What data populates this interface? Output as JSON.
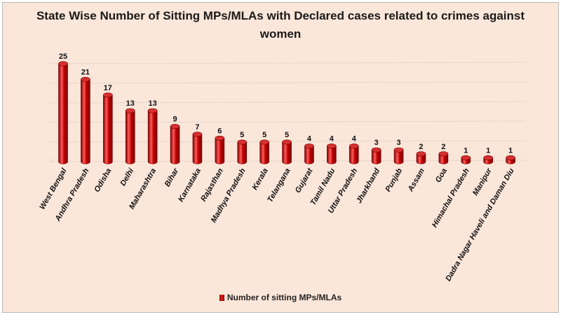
{
  "chart_data": {
    "type": "bar",
    "title_line1": "State Wise Number of Sitting MPs/MLAs  with Declared cases related to crimes against",
    "title_line2": "women",
    "categories": [
      "West Bengal",
      "Andhra Pradesh",
      "Odisha",
      "Delhi",
      "Maharashtra",
      "Bihar",
      "Karnataka",
      "Rajasthan",
      "Madhya Pradesh",
      "Kerala",
      "Telangana",
      "Gujarat",
      "Tamil Nadu",
      "Uttar Pradesh",
      "Jharkhand",
      "Punjab",
      "Assam",
      "Goa",
      "Himachal Pradesh",
      "Manipur",
      "Dadra Nagar Haveli and Daman Diu"
    ],
    "series": [
      {
        "name": "Number of sitting MPs/MLAs",
        "values": [
          25,
          21,
          17,
          13,
          13,
          9,
          7,
          6,
          5,
          5,
          5,
          4,
          4,
          4,
          3,
          3,
          2,
          2,
          1,
          1,
          1
        ]
      }
    ],
    "ylim": [
      0,
      25
    ],
    "grid": true,
    "legend_position": "bottom",
    "colors": {
      "bar": "#c00000",
      "bar_dark": "#7a0000",
      "bar_light": "#ff5a5a",
      "grid": "#e8d5c9",
      "background": "#fbe6da"
    }
  }
}
